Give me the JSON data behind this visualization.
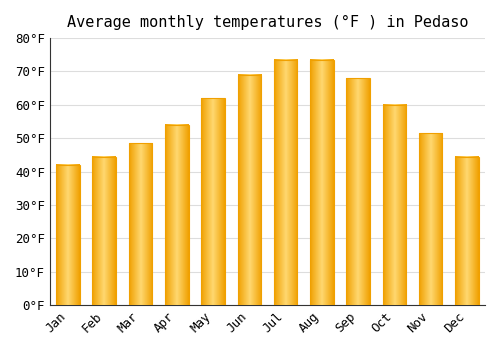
{
  "title": "Average monthly temperatures (°F ) in Pedaso",
  "months": [
    "Jan",
    "Feb",
    "Mar",
    "Apr",
    "May",
    "Jun",
    "Jul",
    "Aug",
    "Sep",
    "Oct",
    "Nov",
    "Dec"
  ],
  "values": [
    42,
    44.5,
    48.5,
    54,
    62,
    69,
    73.5,
    73.5,
    68,
    60,
    51.5,
    44.5
  ],
  "bar_color_center": "#FFD870",
  "bar_color_edge": "#F0A000",
  "ylim": [
    0,
    80
  ],
  "yticks": [
    0,
    10,
    20,
    30,
    40,
    50,
    60,
    70,
    80
  ],
  "ytick_labels": [
    "0°F",
    "10°F",
    "20°F",
    "30°F",
    "40°F",
    "50°F",
    "60°F",
    "70°F",
    "80°F"
  ],
  "background_color": "#FFFFFF",
  "grid_color": "#DDDDDD",
  "title_fontsize": 11,
  "tick_fontsize": 9,
  "font_family": "monospace"
}
